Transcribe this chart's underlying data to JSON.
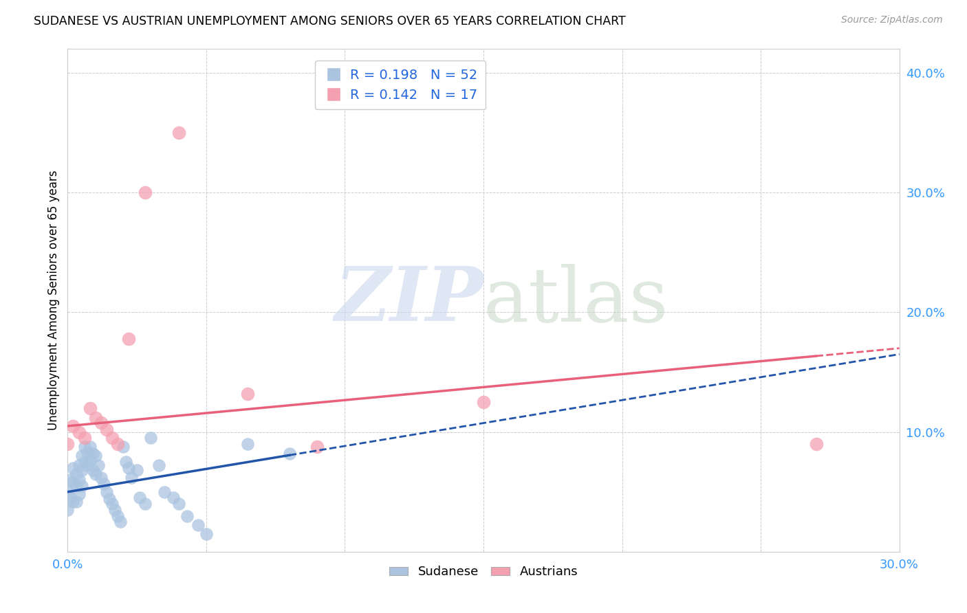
{
  "title": "SUDANESE VS AUSTRIAN UNEMPLOYMENT AMONG SENIORS OVER 65 YEARS CORRELATION CHART",
  "source": "Source: ZipAtlas.com",
  "ylabel": "Unemployment Among Seniors over 65 years",
  "xlim": [
    0.0,
    0.3
  ],
  "ylim": [
    0.0,
    0.42
  ],
  "xticks": [
    0.0,
    0.05,
    0.1,
    0.15,
    0.2,
    0.25,
    0.3
  ],
  "yticks": [
    0.0,
    0.1,
    0.2,
    0.3,
    0.4
  ],
  "legend_labels": [
    "Sudanese",
    "Austrians"
  ],
  "sudanese_R": "0.198",
  "sudanese_N": "52",
  "austrian_R": "0.142",
  "austrian_N": "17",
  "sudanese_color": "#aac4e0",
  "austrian_color": "#f4a0b0",
  "sudanese_line_color": "#2255aa",
  "austrian_line_color": "#e8607a",
  "sudanese_x": [
    0.0,
    0.0,
    0.001,
    0.001,
    0.002,
    0.002,
    0.002,
    0.003,
    0.003,
    0.003,
    0.004,
    0.004,
    0.004,
    0.005,
    0.005,
    0.005,
    0.006,
    0.006,
    0.007,
    0.007,
    0.008,
    0.008,
    0.009,
    0.009,
    0.01,
    0.01,
    0.011,
    0.012,
    0.013,
    0.014,
    0.015,
    0.016,
    0.017,
    0.018,
    0.019,
    0.02,
    0.021,
    0.022,
    0.023,
    0.025,
    0.026,
    0.028,
    0.03,
    0.033,
    0.035,
    0.038,
    0.04,
    0.043,
    0.047,
    0.05,
    0.065,
    0.08
  ],
  "sudanese_y": [
    0.05,
    0.035,
    0.06,
    0.045,
    0.07,
    0.058,
    0.042,
    0.065,
    0.055,
    0.042,
    0.072,
    0.06,
    0.048,
    0.08,
    0.068,
    0.055,
    0.088,
    0.075,
    0.083,
    0.072,
    0.088,
    0.076,
    0.082,
    0.068,
    0.08,
    0.065,
    0.072,
    0.062,
    0.057,
    0.05,
    0.044,
    0.04,
    0.035,
    0.03,
    0.025,
    0.088,
    0.075,
    0.07,
    0.062,
    0.068,
    0.045,
    0.04,
    0.095,
    0.072,
    0.05,
    0.045,
    0.04,
    0.03,
    0.022,
    0.015,
    0.09,
    0.082
  ],
  "austrian_x": [
    0.0,
    0.002,
    0.004,
    0.006,
    0.008,
    0.01,
    0.012,
    0.014,
    0.016,
    0.018,
    0.022,
    0.028,
    0.04,
    0.065,
    0.09,
    0.15,
    0.27
  ],
  "austrian_y": [
    0.09,
    0.105,
    0.1,
    0.095,
    0.12,
    0.112,
    0.108,
    0.102,
    0.095,
    0.09,
    0.178,
    0.3,
    0.35,
    0.132,
    0.088,
    0.125,
    0.09
  ]
}
